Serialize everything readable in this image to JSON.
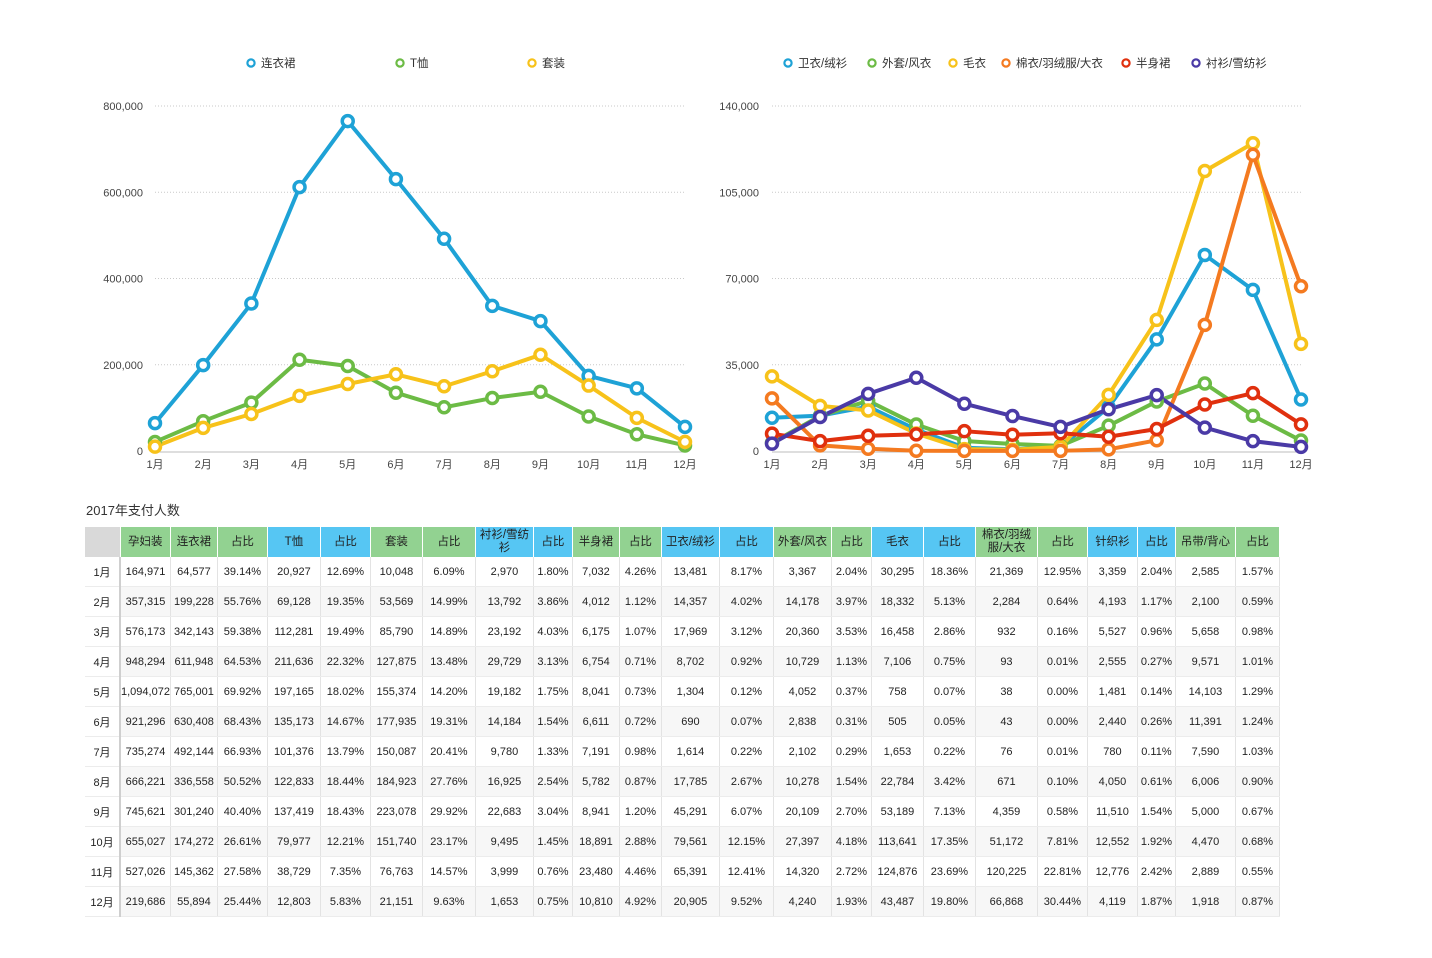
{
  "chart_data": [
    {
      "type": "line",
      "categories": [
        "1月",
        "2月",
        "3月",
        "4月",
        "5月",
        "6月",
        "7月",
        "8月",
        "9月",
        "10月",
        "11月",
        "12月"
      ],
      "ylim": [
        0,
        800000
      ],
      "yticks": [
        0,
        200000,
        400000,
        600000,
        800000
      ],
      "ytick_labels": [
        "0",
        "200,000",
        "400,000",
        "600,000",
        "800,000"
      ],
      "grid": true,
      "legend_position": "top",
      "series": [
        {
          "name": "连衣裙",
          "color": "#1ea2d6",
          "values": [
            64577,
            199228,
            342143,
            611948,
            765001,
            630408,
            492144,
            336558,
            301240,
            174272,
            145362,
            55894
          ]
        },
        {
          "name": "T恤",
          "color": "#6cbb45",
          "values": [
            20927,
            69128,
            112281,
            211636,
            197165,
            135173,
            101376,
            122833,
            137419,
            79977,
            38729,
            12803
          ]
        },
        {
          "name": "套装",
          "color": "#f7c21a",
          "values": [
            10048,
            53569,
            85790,
            127875,
            155374,
            177935,
            150087,
            184923,
            223078,
            151740,
            76763,
            21151
          ]
        }
      ]
    },
    {
      "type": "line",
      "categories": [
        "1月",
        "2月",
        "3月",
        "4月",
        "5月",
        "6月",
        "7月",
        "8月",
        "9月",
        "10月",
        "11月",
        "12月"
      ],
      "ylim": [
        0,
        140000
      ],
      "yticks": [
        0,
        35000,
        70000,
        105000,
        140000
      ],
      "ytick_labels": [
        "0",
        "35,000",
        "70,000",
        "105,000",
        "140,000"
      ],
      "grid": true,
      "legend_position": "top",
      "series": [
        {
          "name": "卫衣/绒衫",
          "color": "#1ea2d6",
          "values": [
            13481,
            14357,
            17969,
            8702,
            1304,
            690,
            1614,
            17785,
            45291,
            79561,
            65391,
            20905
          ]
        },
        {
          "name": "外套/风衣",
          "color": "#6cbb45",
          "values": [
            3367,
            14178,
            20360,
            10729,
            4052,
            2838,
            2102,
            10278,
            20109,
            27397,
            14320,
            4240
          ]
        },
        {
          "name": "毛衣",
          "color": "#f7c21a",
          "values": [
            30295,
            18332,
            16458,
            7106,
            758,
            505,
            1653,
            22784,
            53189,
            113641,
            124876,
            43487
          ]
        },
        {
          "name": "棉衣/羽绒服/大衣",
          "color": "#f47a20",
          "values": [
            21369,
            2284,
            932,
            93,
            38,
            43,
            76,
            671,
            4359,
            51172,
            120225,
            66868
          ]
        },
        {
          "name": "半身裙",
          "color": "#e0300e",
          "values": [
            7032,
            4012,
            6175,
            6754,
            8041,
            6611,
            7191,
            5782,
            8941,
            18891,
            23480,
            10810
          ]
        },
        {
          "name": "衬衫/雪纺衫",
          "color": "#4a3aa6",
          "values": [
            2970,
            13792,
            23192,
            29729,
            19182,
            14184,
            9780,
            16925,
            22683,
            9495,
            3999,
            1653
          ]
        }
      ]
    }
  ],
  "table": {
    "title": "2017年支付人数",
    "headers": [
      {
        "label": "孕妇装",
        "color": "g"
      },
      {
        "label": "连衣裙",
        "color": "g"
      },
      {
        "label": "占比",
        "color": "g"
      },
      {
        "label": "T恤",
        "color": "b"
      },
      {
        "label": "占比",
        "color": "b"
      },
      {
        "label": "套装",
        "color": "g"
      },
      {
        "label": "占比",
        "color": "g"
      },
      {
        "label": "衬衫/雪纺衫",
        "color": "b"
      },
      {
        "label": "占比",
        "color": "b"
      },
      {
        "label": "半身裙",
        "color": "g"
      },
      {
        "label": "占比",
        "color": "g"
      },
      {
        "label": "卫衣/绒衫",
        "color": "b"
      },
      {
        "label": "占比",
        "color": "b"
      },
      {
        "label": "外套/风衣",
        "color": "g"
      },
      {
        "label": "占比",
        "color": "g"
      },
      {
        "label": "毛衣",
        "color": "b"
      },
      {
        "label": "占比",
        "color": "b"
      },
      {
        "label": "棉衣/羽绒服/大衣",
        "color": "g"
      },
      {
        "label": "占比",
        "color": "g"
      },
      {
        "label": "针织衫",
        "color": "b"
      },
      {
        "label": "占比",
        "color": "b"
      },
      {
        "label": "吊带/背心",
        "color": "g"
      },
      {
        "label": "占比",
        "color": "g"
      }
    ],
    "rows": [
      [
        "1月",
        "164,971",
        "64,577",
        "39.14%",
        "20,927",
        "12.69%",
        "10,048",
        "6.09%",
        "2,970",
        "1.80%",
        "7,032",
        "4.26%",
        "13,481",
        "8.17%",
        "3,367",
        "2.04%",
        "30,295",
        "18.36%",
        "21,369",
        "12.95%",
        "3,359",
        "2.04%",
        "2,585",
        "1.57%"
      ],
      [
        "2月",
        "357,315",
        "199,228",
        "55.76%",
        "69,128",
        "19.35%",
        "53,569",
        "14.99%",
        "13,792",
        "3.86%",
        "4,012",
        "1.12%",
        "14,357",
        "4.02%",
        "14,178",
        "3.97%",
        "18,332",
        "5.13%",
        "2,284",
        "0.64%",
        "4,193",
        "1.17%",
        "2,100",
        "0.59%"
      ],
      [
        "3月",
        "576,173",
        "342,143",
        "59.38%",
        "112,281",
        "19.49%",
        "85,790",
        "14.89%",
        "23,192",
        "4.03%",
        "6,175",
        "1.07%",
        "17,969",
        "3.12%",
        "20,360",
        "3.53%",
        "16,458",
        "2.86%",
        "932",
        "0.16%",
        "5,527",
        "0.96%",
        "5,658",
        "0.98%"
      ],
      [
        "4月",
        "948,294",
        "611,948",
        "64.53%",
        "211,636",
        "22.32%",
        "127,875",
        "13.48%",
        "29,729",
        "3.13%",
        "6,754",
        "0.71%",
        "8,702",
        "0.92%",
        "10,729",
        "1.13%",
        "7,106",
        "0.75%",
        "93",
        "0.01%",
        "2,555",
        "0.27%",
        "9,571",
        "1.01%"
      ],
      [
        "5月",
        "1,094,072",
        "765,001",
        "69.92%",
        "197,165",
        "18.02%",
        "155,374",
        "14.20%",
        "19,182",
        "1.75%",
        "8,041",
        "0.73%",
        "1,304",
        "0.12%",
        "4,052",
        "0.37%",
        "758",
        "0.07%",
        "38",
        "0.00%",
        "1,481",
        "0.14%",
        "14,103",
        "1.29%"
      ],
      [
        "6月",
        "921,296",
        "630,408",
        "68.43%",
        "135,173",
        "14.67%",
        "177,935",
        "19.31%",
        "14,184",
        "1.54%",
        "6,611",
        "0.72%",
        "690",
        "0.07%",
        "2,838",
        "0.31%",
        "505",
        "0.05%",
        "43",
        "0.00%",
        "2,440",
        "0.26%",
        "11,391",
        "1.24%"
      ],
      [
        "7月",
        "735,274",
        "492,144",
        "66.93%",
        "101,376",
        "13.79%",
        "150,087",
        "20.41%",
        "9,780",
        "1.33%",
        "7,191",
        "0.98%",
        "1,614",
        "0.22%",
        "2,102",
        "0.29%",
        "1,653",
        "0.22%",
        "76",
        "0.01%",
        "780",
        "0.11%",
        "7,590",
        "1.03%"
      ],
      [
        "8月",
        "666,221",
        "336,558",
        "50.52%",
        "122,833",
        "18.44%",
        "184,923",
        "27.76%",
        "16,925",
        "2.54%",
        "5,782",
        "0.87%",
        "17,785",
        "2.67%",
        "10,278",
        "1.54%",
        "22,784",
        "3.42%",
        "671",
        "0.10%",
        "4,050",
        "0.61%",
        "6,006",
        "0.90%"
      ],
      [
        "9月",
        "745,621",
        "301,240",
        "40.40%",
        "137,419",
        "18.43%",
        "223,078",
        "29.92%",
        "22,683",
        "3.04%",
        "8,941",
        "1.20%",
        "45,291",
        "6.07%",
        "20,109",
        "2.70%",
        "53,189",
        "7.13%",
        "4,359",
        "0.58%",
        "11,510",
        "1.54%",
        "5,000",
        "0.67%"
      ],
      [
        "10月",
        "655,027",
        "174,272",
        "26.61%",
        "79,977",
        "12.21%",
        "151,740",
        "23.17%",
        "9,495",
        "1.45%",
        "18,891",
        "2.88%",
        "79,561",
        "12.15%",
        "27,397",
        "4.18%",
        "113,641",
        "17.35%",
        "51,172",
        "7.81%",
        "12,552",
        "1.92%",
        "4,470",
        "0.68%"
      ],
      [
        "11月",
        "527,026",
        "145,362",
        "27.58%",
        "38,729",
        "7.35%",
        "76,763",
        "14.57%",
        "3,999",
        "0.76%",
        "23,480",
        "4.46%",
        "65,391",
        "12.41%",
        "14,320",
        "2.72%",
        "124,876",
        "23.69%",
        "120,225",
        "22.81%",
        "12,776",
        "2.42%",
        "2,889",
        "0.55%"
      ],
      [
        "12月",
        "219,686",
        "55,894",
        "25.44%",
        "12,803",
        "5.83%",
        "21,151",
        "9.63%",
        "1,653",
        "0.75%",
        "10,810",
        "4.92%",
        "20,905",
        "9.52%",
        "4,240",
        "1.93%",
        "43,487",
        "19.80%",
        "66,868",
        "30.44%",
        "4,119",
        "1.87%",
        "1,918",
        "0.87%"
      ]
    ]
  }
}
